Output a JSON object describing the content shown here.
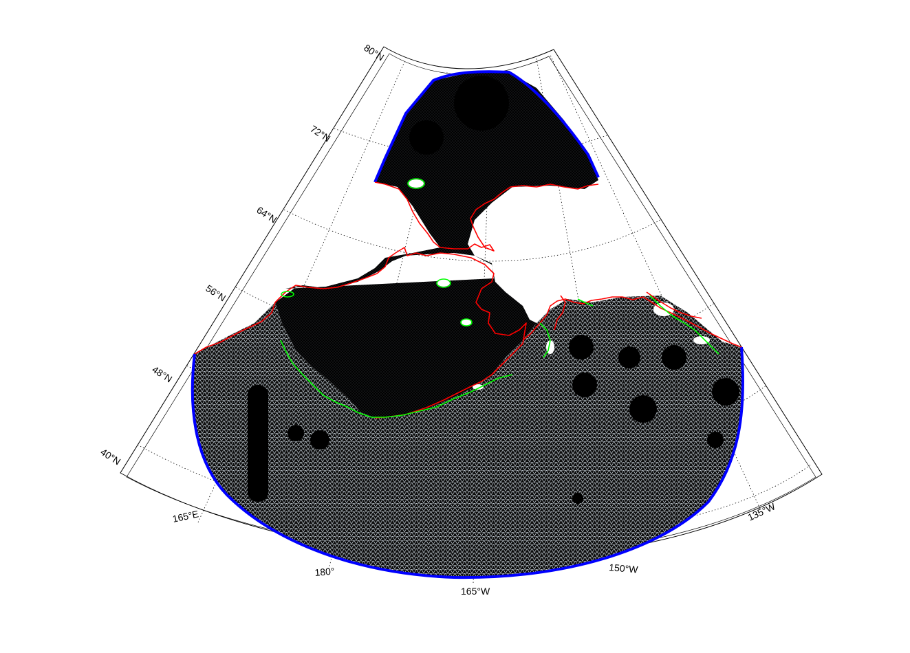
{
  "figure": {
    "projection": "conic",
    "colors": {
      "background": "#ffffff",
      "mesh_fill": "#000000",
      "mesh_lines": "#c8d2da",
      "open_boundary": "#0000ff",
      "coastline": "#ff0000",
      "islands": "#00ff00",
      "frame": "#000000",
      "graticule": "#000000"
    },
    "latitude_labels": [
      "80°N",
      "72°N",
      "64°N",
      "56°N",
      "48°N",
      "40°N"
    ],
    "longitude_labels": [
      "165°E",
      "180°",
      "165°W",
      "150°W",
      "135°W"
    ],
    "lat_range": [
      40,
      80
    ],
    "lon_range": [
      165,
      -135
    ],
    "graticule": "dotted"
  }
}
